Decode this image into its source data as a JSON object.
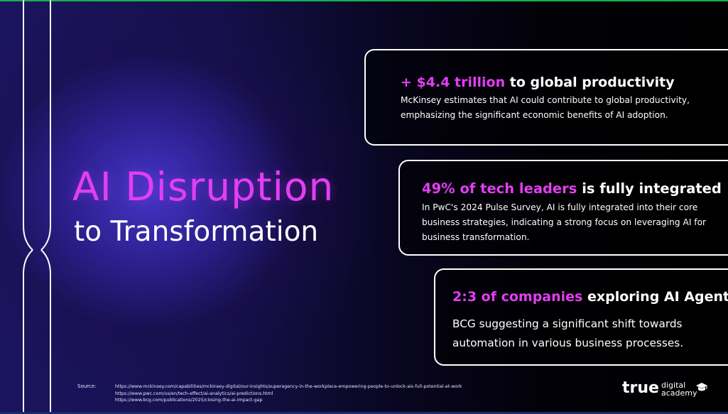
{
  "headline": "AI Disruption",
  "subheadline": "to Transformation",
  "cards": [
    {
      "highlight": "+ $4.4 trillion",
      "title_rest": "to global productivity",
      "body": "McKinsey estimates that AI could contribute to global productivity, emphasizing the significant economic benefits of AI adoption."
    },
    {
      "highlight": "49% of tech leaders",
      "title_rest": "is fully integrated",
      "body": "In PwC's 2024 Pulse Survey, AI is fully integrated into their core business strategies, indicating a strong focus on leveraging AI for business transformation."
    },
    {
      "highlight": "2:3 of companies",
      "title_rest": "exploring AI Agent",
      "body": "BCG suggesting a significant shift towards automation in various business processes."
    }
  ],
  "source": {
    "label": "Source:",
    "links": [
      "https://www.mckinsey.com/capabilities/mckinsey-digital/our-insights/superagency-in-the-workplace-empowering-people-to-unlock-ais-full-potential-at-work",
      "https://www.pwc.com/us/en/tech-effect/ai-analytics/ai-predictions.html",
      "https://www.bcg.com/publications/2025/closing-the-ai-impact-gap"
    ]
  },
  "logo": {
    "brand": "true",
    "line1": "digital",
    "line2": "academy"
  },
  "colors": {
    "accent": "#e23ef2",
    "text": "#ffffff",
    "top_bar": "#18b04a"
  }
}
